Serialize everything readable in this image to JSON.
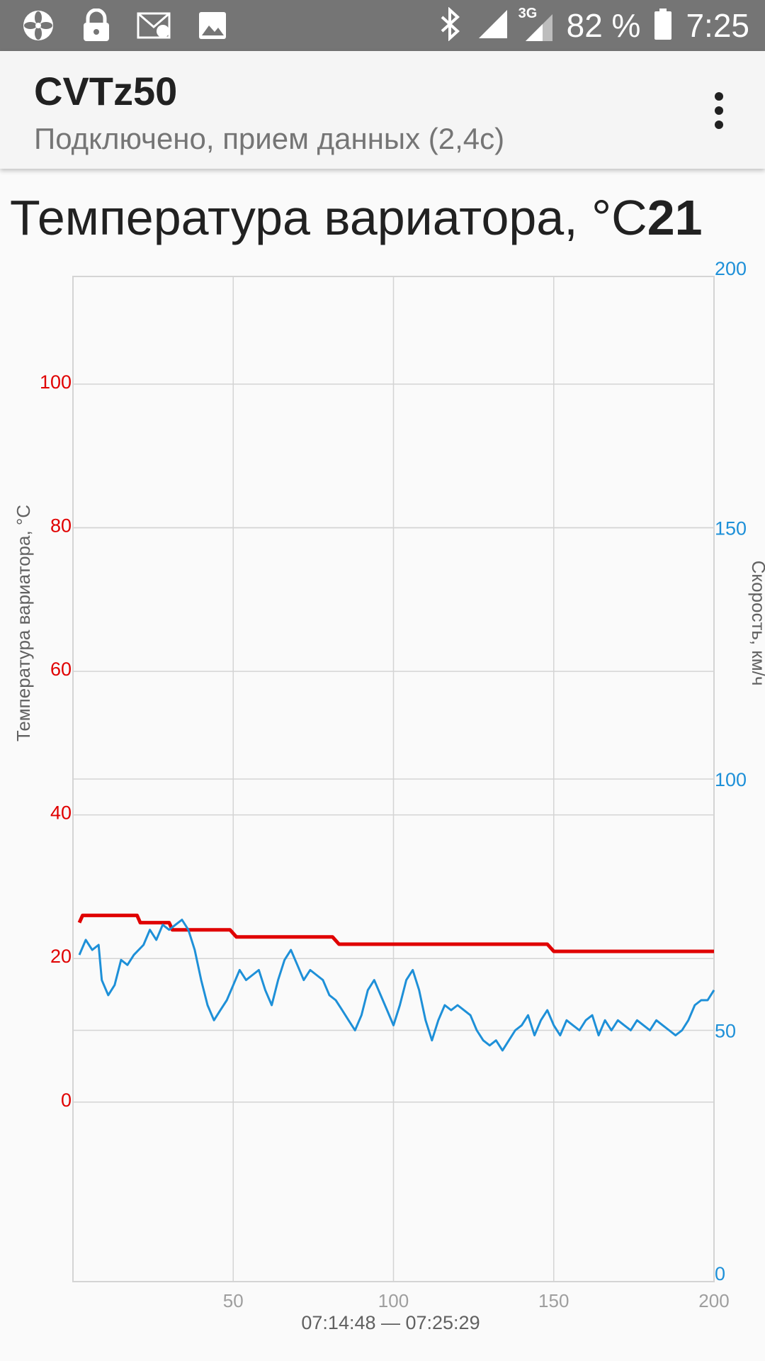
{
  "statusbar": {
    "icons_left": [
      "fan-icon",
      "lock-icon",
      "mail-icon",
      "image-icon"
    ],
    "icons_right": [
      "bluetooth-icon",
      "signal-icon",
      "3g-signal-icon",
      "battery-icon"
    ],
    "network": "3G",
    "battery": "82 %",
    "time": "7:25"
  },
  "appbar": {
    "title": "CVTz50",
    "subtitle": "Подключено, прием данных (2,4с)"
  },
  "chart_title": {
    "label": "Температура вариатора, °C",
    "value": "21"
  },
  "chart_data": {
    "type": "line",
    "x_range": [
      0,
      200
    ],
    "x_ticks": [
      "50",
      "100",
      "150",
      "200"
    ],
    "x_tick_values": [
      50,
      100,
      150,
      200
    ],
    "x_footer": "07:14:48 — 07:25:29",
    "left_axis": {
      "label": "Температура вариатора, °C",
      "color": "#e00000",
      "range": [
        -25,
        115
      ],
      "ticks": [
        "0",
        "20",
        "40",
        "60",
        "80",
        "100"
      ],
      "tick_values": [
        0,
        20,
        40,
        60,
        80,
        100
      ]
    },
    "right_axis": {
      "label": "Скорость, км/ч",
      "color": "#1e90d8",
      "range": [
        0,
        200
      ],
      "ticks": [
        "0",
        "50",
        "100",
        "150",
        "200"
      ],
      "tick_values": [
        0,
        50,
        100,
        150,
        200
      ]
    },
    "series": [
      {
        "axis": "left",
        "color": "#e00000",
        "points": [
          [
            2,
            25
          ],
          [
            3,
            26
          ],
          [
            20,
            26
          ],
          [
            21,
            25
          ],
          [
            30,
            25
          ],
          [
            31,
            24
          ],
          [
            49,
            24
          ],
          [
            51,
            23
          ],
          [
            81,
            23
          ],
          [
            83,
            22
          ],
          [
            148,
            22
          ],
          [
            150,
            21
          ],
          [
            200,
            21
          ]
        ]
      },
      {
        "axis": "right",
        "color": "#1e90d8",
        "points": [
          [
            2,
            65
          ],
          [
            4,
            68
          ],
          [
            6,
            66
          ],
          [
            8,
            67
          ],
          [
            9,
            60
          ],
          [
            11,
            57
          ],
          [
            13,
            59
          ],
          [
            15,
            64
          ],
          [
            17,
            63
          ],
          [
            19,
            65
          ],
          [
            22,
            67
          ],
          [
            24,
            70
          ],
          [
            26,
            68
          ],
          [
            28,
            71
          ],
          [
            30,
            70
          ],
          [
            32,
            71
          ],
          [
            34,
            72
          ],
          [
            36,
            70
          ],
          [
            38,
            66
          ],
          [
            40,
            60
          ],
          [
            42,
            55
          ],
          [
            44,
            52
          ],
          [
            46,
            54
          ],
          [
            48,
            56
          ],
          [
            50,
            59
          ],
          [
            52,
            62
          ],
          [
            54,
            60
          ],
          [
            56,
            61
          ],
          [
            58,
            62
          ],
          [
            60,
            58
          ],
          [
            62,
            55
          ],
          [
            64,
            60
          ],
          [
            66,
            64
          ],
          [
            68,
            66
          ],
          [
            70,
            63
          ],
          [
            72,
            60
          ],
          [
            74,
            62
          ],
          [
            76,
            61
          ],
          [
            78,
            60
          ],
          [
            80,
            57
          ],
          [
            82,
            56
          ],
          [
            84,
            54
          ],
          [
            86,
            52
          ],
          [
            88,
            50
          ],
          [
            90,
            53
          ],
          [
            92,
            58
          ],
          [
            94,
            60
          ],
          [
            96,
            57
          ],
          [
            98,
            54
          ],
          [
            100,
            51
          ],
          [
            102,
            55
          ],
          [
            104,
            60
          ],
          [
            106,
            62
          ],
          [
            108,
            58
          ],
          [
            110,
            52
          ],
          [
            112,
            48
          ],
          [
            114,
            52
          ],
          [
            116,
            55
          ],
          [
            118,
            54
          ],
          [
            120,
            55
          ],
          [
            122,
            54
          ],
          [
            124,
            53
          ],
          [
            126,
            50
          ],
          [
            128,
            48
          ],
          [
            130,
            47
          ],
          [
            132,
            48
          ],
          [
            134,
            46
          ],
          [
            136,
            48
          ],
          [
            138,
            50
          ],
          [
            140,
            51
          ],
          [
            142,
            53
          ],
          [
            144,
            49
          ],
          [
            146,
            52
          ],
          [
            148,
            54
          ],
          [
            150,
            51
          ],
          [
            152,
            49
          ],
          [
            154,
            52
          ],
          [
            156,
            51
          ],
          [
            158,
            50
          ],
          [
            160,
            52
          ],
          [
            162,
            53
          ],
          [
            164,
            49
          ],
          [
            166,
            52
          ],
          [
            168,
            50
          ],
          [
            170,
            52
          ],
          [
            172,
            51
          ],
          [
            174,
            50
          ],
          [
            176,
            52
          ],
          [
            178,
            51
          ],
          [
            180,
            50
          ],
          [
            182,
            52
          ],
          [
            184,
            51
          ],
          [
            186,
            50
          ],
          [
            188,
            49
          ],
          [
            190,
            50
          ],
          [
            192,
            52
          ],
          [
            194,
            55
          ],
          [
            196,
            56
          ],
          [
            198,
            56
          ],
          [
            200,
            58
          ]
        ]
      }
    ],
    "grid": true
  }
}
